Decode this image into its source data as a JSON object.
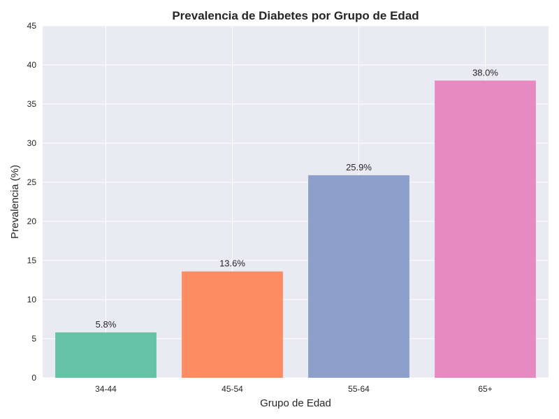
{
  "chart_data": {
    "type": "bar",
    "title": "Prevalencia de Diabetes por Grupo de Edad",
    "xlabel": "Grupo de Edad",
    "ylabel": "Prevalencia (%)",
    "categories": [
      "34-44",
      "45-54",
      "55-64",
      "65+"
    ],
    "values": [
      5.8,
      13.6,
      25.9,
      38.0
    ],
    "data_labels": [
      "5.8%",
      "13.6%",
      "25.9%",
      "38.0%"
    ],
    "colors": [
      "#66c2a5",
      "#fc8d62",
      "#8da0cb",
      "#e78ac3"
    ],
    "ylim": [
      0,
      45
    ],
    "yticks": [
      "0",
      "5",
      "10",
      "15",
      "20",
      "25",
      "30",
      "35",
      "40",
      "45"
    ],
    "grid": true,
    "background_color": "#eaeaf2"
  }
}
